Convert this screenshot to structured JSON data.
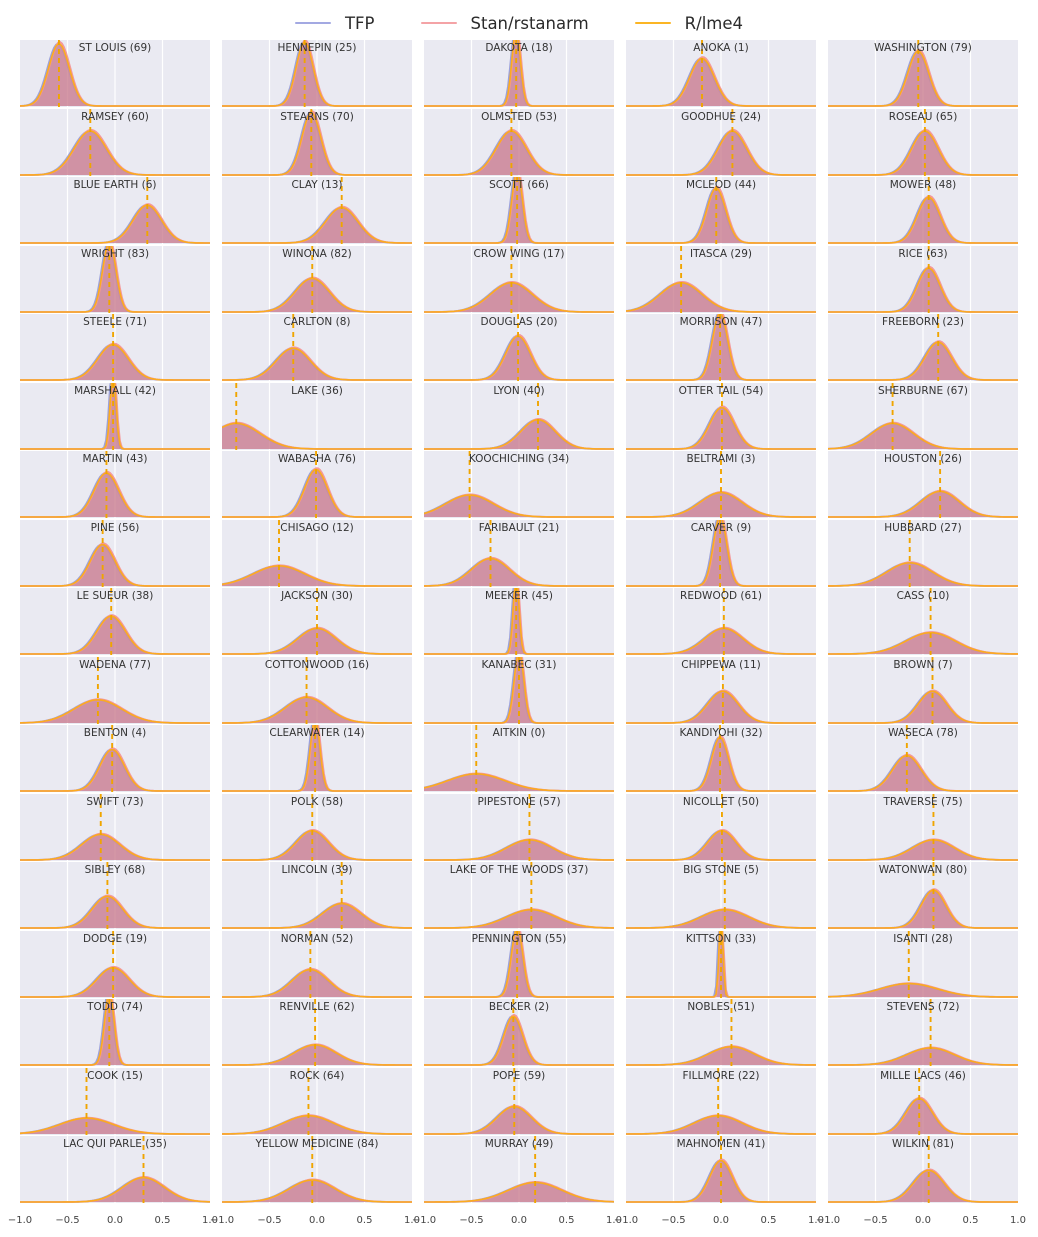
{
  "legend": {
    "items": [
      {
        "label": "TFP",
        "color": "#a3a9e2"
      },
      {
        "label": "Stan/rstanarm",
        "color": "#f4a3a6"
      },
      {
        "label": "R/lme4",
        "color": "#fbb524"
      }
    ]
  },
  "axis": {
    "ticks": [
      "−1.0",
      "−0.5",
      "0.0",
      "0.5",
      "1.0"
    ],
    "range": [
      -1.0,
      1.0
    ]
  },
  "colors": {
    "panel_background": "#eaeaf2",
    "gridline": "#ffffff",
    "fill_combined": "#c06ba6",
    "tfp_line": "#9aa0dc",
    "stan_line": "#f3989c",
    "lme4_line": "#fbab20",
    "mean_dashed_line": "#f0a500",
    "title_text": "#333333",
    "tick_text": "#444444"
  },
  "chart_data": {
    "type": "area",
    "subtype": "density-grid",
    "description": "Grid of 85 posterior density estimates (one per Minnesota county) overlaying three inference methods; dashed vertical line marks posterior mean; x-axis range -1 to 1 for every panel.",
    "x_range": [
      -1.0,
      1.0
    ],
    "x_ticks": [
      -1.0,
      -0.5,
      0.0,
      0.5,
      1.0
    ],
    "grid": {
      "rows": 17,
      "cols": 5,
      "vertical_gridlines_at": [
        -0.5,
        0.0,
        0.5
      ]
    },
    "series_names": [
      "TFP",
      "Stan/rstanarm",
      "R/lme4"
    ],
    "panels": [
      {
        "label": "ST LOUIS (69)",
        "county": "ST LOUIS",
        "index": 69,
        "mean": -0.59,
        "sd": 0.11,
        "peak": 1.02
      },
      {
        "label": "HENNEPIN (25)",
        "county": "HENNEPIN",
        "index": 25,
        "mean": -0.13,
        "sd": 0.09,
        "peak": 1.05
      },
      {
        "label": "DAKOTA (18)",
        "county": "DAKOTA",
        "index": 18,
        "mean": -0.03,
        "sd": 0.045,
        "peak": 1.25
      },
      {
        "label": "ANOKA (1)",
        "county": "ANOKA",
        "index": 1,
        "mean": -0.2,
        "sd": 0.13,
        "peak": 0.78
      },
      {
        "label": "WASHINGTON (79)",
        "county": "WASHINGTON",
        "index": 79,
        "mean": -0.05,
        "sd": 0.11,
        "peak": 0.9
      },
      {
        "label": "RAMSEY (60)",
        "county": "RAMSEY",
        "index": 60,
        "mean": -0.26,
        "sd": 0.17,
        "peak": 0.72
      },
      {
        "label": "STEARNS (70)",
        "county": "STEARNS",
        "index": 70,
        "mean": -0.06,
        "sd": 0.1,
        "peak": 1.02
      },
      {
        "label": "OLMSTED (53)",
        "county": "OLMSTED",
        "index": 53,
        "mean": -0.08,
        "sd": 0.16,
        "peak": 0.72
      },
      {
        "label": "GOODHUE (24)",
        "county": "GOODHUE",
        "index": 24,
        "mean": 0.12,
        "sd": 0.15,
        "peak": 0.72
      },
      {
        "label": "ROSEAU (65)",
        "county": "ROSEAU",
        "index": 65,
        "mean": 0.02,
        "sd": 0.14,
        "peak": 0.72
      },
      {
        "label": "BLUE EARTH (6)",
        "county": "BLUE EARTH",
        "index": 6,
        "mean": 0.34,
        "sd": 0.15,
        "peak": 0.62
      },
      {
        "label": "CLAY (13)",
        "county": "CLAY",
        "index": 13,
        "mean": 0.26,
        "sd": 0.17,
        "peak": 0.58
      },
      {
        "label": "SCOTT (66)",
        "county": "SCOTT",
        "index": 66,
        "mean": -0.02,
        "sd": 0.055,
        "peak": 1.2
      },
      {
        "label": "MCLEOD (44)",
        "county": "MCLEOD",
        "index": 44,
        "mean": -0.05,
        "sd": 0.1,
        "peak": 0.9
      },
      {
        "label": "MOWER (48)",
        "county": "MOWER",
        "index": 48,
        "mean": 0.06,
        "sd": 0.12,
        "peak": 0.75
      },
      {
        "label": "WRIGHT (83)",
        "county": "WRIGHT",
        "index": 83,
        "mean": -0.06,
        "sd": 0.07,
        "peak": 1.15
      },
      {
        "label": "WINONA (82)",
        "county": "WINONA",
        "index": 82,
        "mean": -0.05,
        "sd": 0.18,
        "peak": 0.55
      },
      {
        "label": "CROW WING (17)",
        "county": "CROW WING",
        "index": 17,
        "mean": -0.08,
        "sd": 0.22,
        "peak": 0.48
      },
      {
        "label": "ITASCA (29)",
        "county": "ITASCA",
        "index": 29,
        "mean": -0.42,
        "sd": 0.22,
        "peak": 0.48
      },
      {
        "label": "RICE (63)",
        "county": "RICE",
        "index": 63,
        "mean": 0.06,
        "sd": 0.12,
        "peak": 0.72
      },
      {
        "label": "STEELE (71)",
        "county": "STEELE",
        "index": 71,
        "mean": -0.02,
        "sd": 0.16,
        "peak": 0.58
      },
      {
        "label": "CARLTON (8)",
        "county": "CARLTON",
        "index": 8,
        "mean": -0.25,
        "sd": 0.18,
        "peak": 0.52
      },
      {
        "label": "DOUGLAS (20)",
        "county": "DOUGLAS",
        "index": 20,
        "mean": -0.01,
        "sd": 0.13,
        "peak": 0.72
      },
      {
        "label": "MORRISON (47)",
        "county": "MORRISON",
        "index": 47,
        "mean": -0.01,
        "sd": 0.08,
        "peak": 1.1
      },
      {
        "label": "FREEBORN (23)",
        "county": "FREEBORN",
        "index": 23,
        "mean": 0.16,
        "sd": 0.14,
        "peak": 0.62
      },
      {
        "label": "MARSHALL (42)",
        "county": "MARSHALL",
        "index": 42,
        "mean": -0.02,
        "sd": 0.03,
        "peak": 1.3
      },
      {
        "label": "LAKE (36)",
        "county": "LAKE",
        "index": 36,
        "mean": -0.85,
        "sd": 0.25,
        "peak": 0.42
      },
      {
        "label": "LYON (40)",
        "county": "LYON",
        "index": 40,
        "mean": 0.2,
        "sd": 0.18,
        "peak": 0.48
      },
      {
        "label": "OTTER TAIL (54)",
        "county": "OTTER TAIL",
        "index": 54,
        "mean": 0.01,
        "sd": 0.13,
        "peak": 0.68
      },
      {
        "label": "SHERBURNE (67)",
        "county": "SHERBURNE",
        "index": 67,
        "mean": -0.32,
        "sd": 0.22,
        "peak": 0.42
      },
      {
        "label": "MARTIN (43)",
        "county": "MARTIN",
        "index": 43,
        "mean": -0.09,
        "sd": 0.13,
        "peak": 0.72
      },
      {
        "label": "WABASHA (76)",
        "county": "WABASHA",
        "index": 76,
        "mean": -0.01,
        "sd": 0.12,
        "peak": 0.78
      },
      {
        "label": "KOOCHICHING (34)",
        "county": "KOOCHICHING",
        "index": 34,
        "mean": -0.52,
        "sd": 0.25,
        "peak": 0.36
      },
      {
        "label": "BELTRAMI (3)",
        "county": "BELTRAMI",
        "index": 3,
        "mean": 0.0,
        "sd": 0.22,
        "peak": 0.4
      },
      {
        "label": "HOUSTON (26)",
        "county": "HOUSTON",
        "index": 26,
        "mean": 0.18,
        "sd": 0.2,
        "peak": 0.42
      },
      {
        "label": "PINE (56)",
        "county": "PINE",
        "index": 56,
        "mean": -0.13,
        "sd": 0.13,
        "peak": 0.68
      },
      {
        "label": "CHISAGO (12)",
        "county": "CHISAGO",
        "index": 12,
        "mean": -0.4,
        "sd": 0.27,
        "peak": 0.33
      },
      {
        "label": "FARIBAULT (21)",
        "county": "FARIBAULT",
        "index": 21,
        "mean": -0.3,
        "sd": 0.2,
        "peak": 0.45
      },
      {
        "label": "CARVER (9)",
        "county": "CARVER",
        "index": 9,
        "mean": -0.01,
        "sd": 0.07,
        "peak": 1.15
      },
      {
        "label": "HUBBARD (27)",
        "county": "HUBBARD",
        "index": 27,
        "mean": -0.14,
        "sd": 0.24,
        "peak": 0.38
      },
      {
        "label": "LE SUEUR (38)",
        "county": "LE SUEUR",
        "index": 38,
        "mean": -0.04,
        "sd": 0.15,
        "peak": 0.62
      },
      {
        "label": "JACKSON (30)",
        "county": "JACKSON",
        "index": 30,
        "mean": 0.0,
        "sd": 0.2,
        "peak": 0.42
      },
      {
        "label": "MEEKER (45)",
        "county": "MEEKER",
        "index": 45,
        "mean": -0.03,
        "sd": 0.03,
        "peak": 1.3
      },
      {
        "label": "REDWOOD (61)",
        "county": "REDWOOD",
        "index": 61,
        "mean": 0.03,
        "sd": 0.2,
        "peak": 0.42
      },
      {
        "label": "CASS (10)",
        "county": "CASS",
        "index": 10,
        "mean": 0.08,
        "sd": 0.26,
        "peak": 0.35
      },
      {
        "label": "WADENA (77)",
        "county": "WADENA",
        "index": 77,
        "mean": -0.18,
        "sd": 0.25,
        "peak": 0.38
      },
      {
        "label": "COTTONWOOD (16)",
        "county": "COTTONWOOD",
        "index": 16,
        "mean": -0.11,
        "sd": 0.22,
        "peak": 0.42
      },
      {
        "label": "KANABEC (31)",
        "county": "KANABEC",
        "index": 31,
        "mean": 0.0,
        "sd": 0.05,
        "peak": 1.2
      },
      {
        "label": "CHIPPEWA (11)",
        "county": "CHIPPEWA",
        "index": 11,
        "mean": 0.02,
        "sd": 0.16,
        "peak": 0.52
      },
      {
        "label": "BROWN (7)",
        "county": "BROWN",
        "index": 7,
        "mean": 0.1,
        "sd": 0.15,
        "peak": 0.52
      },
      {
        "label": "BENTON (4)",
        "county": "BENTON",
        "index": 4,
        "mean": -0.03,
        "sd": 0.13,
        "peak": 0.68
      },
      {
        "label": "CLEARWATER (14)",
        "county": "CLEARWATER",
        "index": 14,
        "mean": -0.02,
        "sd": 0.05,
        "peak": 1.2
      },
      {
        "label": "AITKIN (0)",
        "county": "AITKIN",
        "index": 0,
        "mean": -0.45,
        "sd": 0.3,
        "peak": 0.28
      },
      {
        "label": "KANDIYOHI (32)",
        "county": "KANDIYOHI",
        "index": 32,
        "mean": -0.01,
        "sd": 0.09,
        "peak": 0.88
      },
      {
        "label": "WASECA (78)",
        "county": "WASECA",
        "index": 78,
        "mean": -0.17,
        "sd": 0.15,
        "peak": 0.58
      },
      {
        "label": "SWIFT (73)",
        "county": "SWIFT",
        "index": 73,
        "mean": -0.15,
        "sd": 0.2,
        "peak": 0.42
      },
      {
        "label": "POLK (58)",
        "county": "POLK",
        "index": 58,
        "mean": -0.05,
        "sd": 0.17,
        "peak": 0.48
      },
      {
        "label": "PIPESTONE (57)",
        "county": "PIPESTONE",
        "index": 57,
        "mean": 0.11,
        "sd": 0.24,
        "peak": 0.33
      },
      {
        "label": "NICOLLET (50)",
        "county": "NICOLLET",
        "index": 50,
        "mean": 0.01,
        "sd": 0.15,
        "peak": 0.48
      },
      {
        "label": "TRAVERSE (75)",
        "county": "TRAVERSE",
        "index": 75,
        "mean": 0.11,
        "sd": 0.22,
        "peak": 0.33
      },
      {
        "label": "SIBLEY (68)",
        "county": "SIBLEY",
        "index": 68,
        "mean": -0.08,
        "sd": 0.16,
        "peak": 0.52
      },
      {
        "label": "LINCOLN (39)",
        "county": "LINCOLN",
        "index": 39,
        "mean": 0.26,
        "sd": 0.2,
        "peak": 0.4
      },
      {
        "label": "LAKE OF THE WOODS (37)",
        "county": "LAKE OF THE WOODS",
        "index": 37,
        "mean": 0.13,
        "sd": 0.26,
        "peak": 0.3
      },
      {
        "label": "BIG STONE (5)",
        "county": "BIG STONE",
        "index": 5,
        "mean": 0.04,
        "sd": 0.25,
        "peak": 0.3
      },
      {
        "label": "WATONWAN (80)",
        "county": "WATONWAN",
        "index": 80,
        "mean": 0.11,
        "sd": 0.13,
        "peak": 0.62
      },
      {
        "label": "DODGE (19)",
        "county": "DODGE",
        "index": 19,
        "mean": -0.02,
        "sd": 0.17,
        "peak": 0.48
      },
      {
        "label": "NORMAN (52)",
        "county": "NORMAN",
        "index": 52,
        "mean": -0.07,
        "sd": 0.19,
        "peak": 0.45
      },
      {
        "label": "PENNINGTON (55)",
        "county": "PENNINGTON",
        "index": 55,
        "mean": -0.02,
        "sd": 0.06,
        "peak": 1.15
      },
      {
        "label": "KITTSON (33)",
        "county": "KITTSON",
        "index": 33,
        "mean": 0.0,
        "sd": 0.02,
        "peak": 1.4
      },
      {
        "label": "ISANTI (28)",
        "county": "ISANTI",
        "index": 28,
        "mean": -0.15,
        "sd": 0.3,
        "peak": 0.22
      },
      {
        "label": "TODD (74)",
        "county": "TODD",
        "index": 74,
        "mean": -0.06,
        "sd": 0.05,
        "peak": 1.2
      },
      {
        "label": "RENVILLE (62)",
        "county": "RENVILLE",
        "index": 62,
        "mean": -0.02,
        "sd": 0.22,
        "peak": 0.33
      },
      {
        "label": "BECKER (2)",
        "county": "BECKER",
        "index": 2,
        "mean": -0.06,
        "sd": 0.1,
        "peak": 0.8
      },
      {
        "label": "NOBLES (51)",
        "county": "NOBLES",
        "index": 51,
        "mean": 0.11,
        "sd": 0.24,
        "peak": 0.3
      },
      {
        "label": "STEVENS (72)",
        "county": "STEVENS",
        "index": 72,
        "mean": 0.08,
        "sd": 0.25,
        "peak": 0.28
      },
      {
        "label": "COOK (15)",
        "county": "COOK",
        "index": 15,
        "mean": -0.3,
        "sd": 0.28,
        "peak": 0.26
      },
      {
        "label": "ROCK (64)",
        "county": "ROCK",
        "index": 64,
        "mean": -0.09,
        "sd": 0.26,
        "peak": 0.3
      },
      {
        "label": "POPE (59)",
        "county": "POPE",
        "index": 59,
        "mean": -0.05,
        "sd": 0.18,
        "peak": 0.45
      },
      {
        "label": "FILLMORE (22)",
        "county": "FILLMORE",
        "index": 22,
        "mean": -0.03,
        "sd": 0.25,
        "peak": 0.3
      },
      {
        "label": "MILLE LACS (46)",
        "county": "MILLE LACS",
        "index": 46,
        "mean": -0.04,
        "sd": 0.14,
        "peak": 0.58
      },
      {
        "label": "LAC QUI PARLE (35)",
        "county": "LAC QUI PARLE",
        "index": 35,
        "mean": 0.3,
        "sd": 0.22,
        "peak": 0.4
      },
      {
        "label": "YELLOW MEDICINE (84)",
        "county": "YELLOW MEDICINE",
        "index": 84,
        "mean": -0.05,
        "sd": 0.24,
        "peak": 0.36
      },
      {
        "label": "MURRAY (49)",
        "county": "MURRAY",
        "index": 49,
        "mean": 0.17,
        "sd": 0.28,
        "peak": 0.32
      },
      {
        "label": "MAHNOMEN (41)",
        "county": "MAHNOMEN",
        "index": 41,
        "mean": 0.0,
        "sd": 0.12,
        "peak": 0.68
      },
      {
        "label": "WILKIN (81)",
        "county": "WILKIN",
        "index": 81,
        "mean": 0.06,
        "sd": 0.16,
        "peak": 0.52
      }
    ]
  }
}
